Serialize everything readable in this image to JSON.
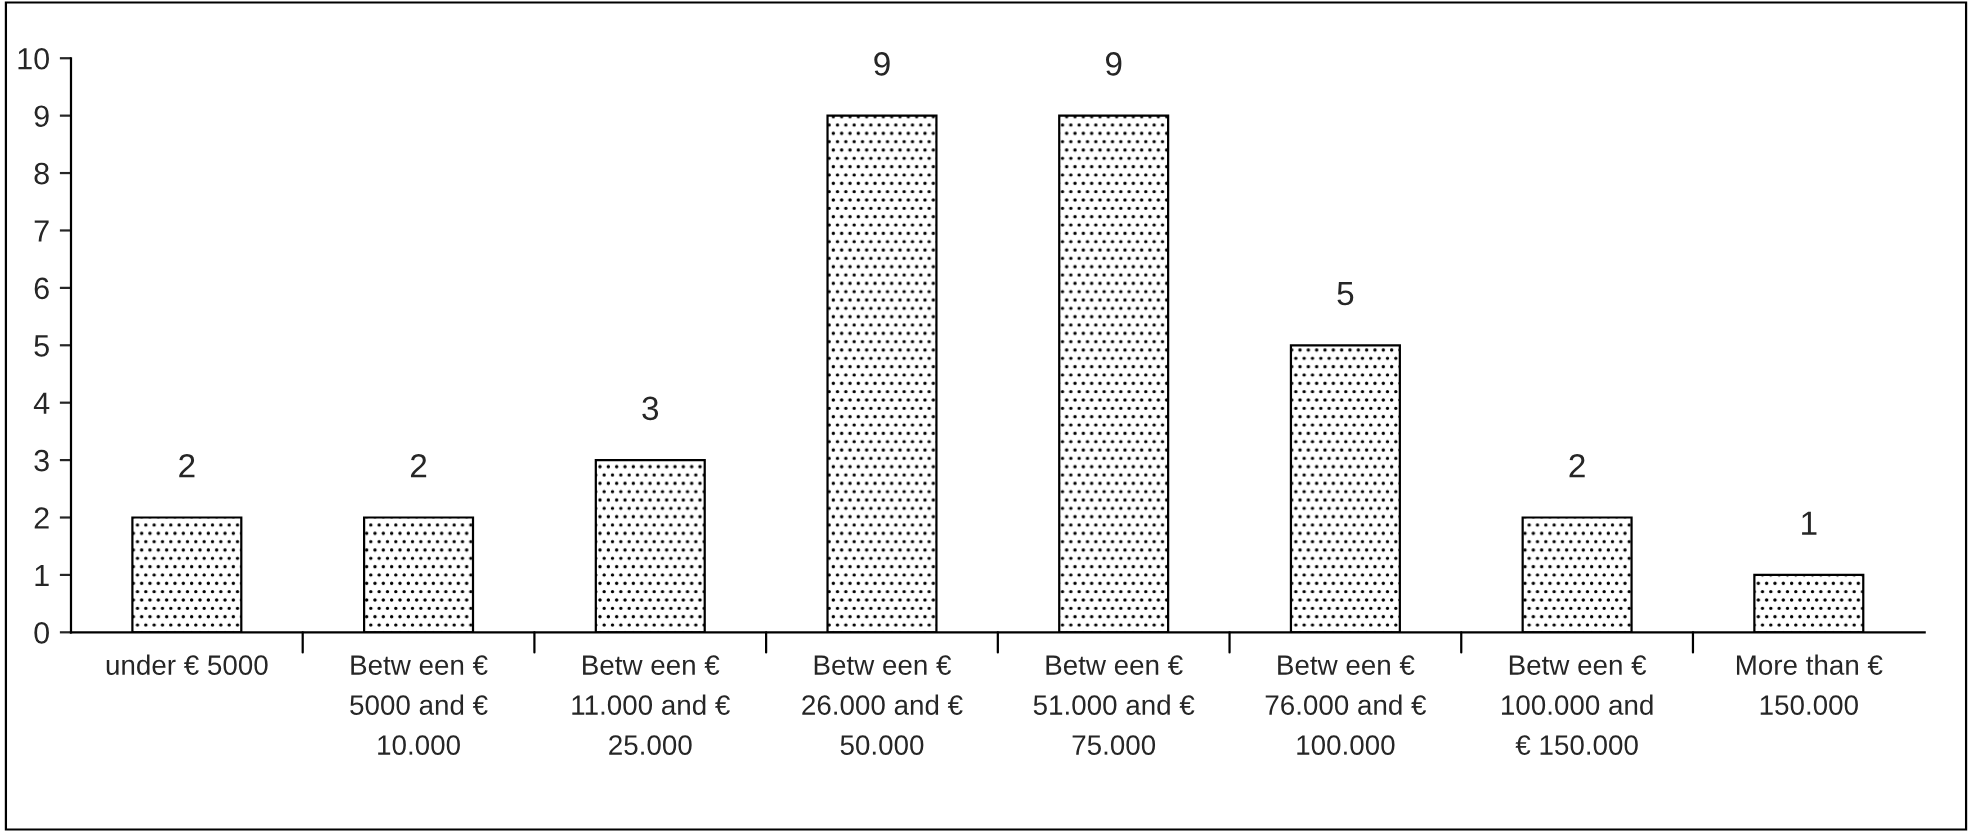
{
  "chart_data": {
    "type": "bar",
    "categories": [
      "under € 5000",
      "Betw een €\n5000 and €\n10.000",
      "Betw een €\n11.000 and €\n25.000",
      "Betw een €\n26.000 and €\n50.000",
      "Betw een €\n51.000 and €\n75.000",
      "Betw een €\n76.000 and €\n100.000",
      "Betw een €\n100.000 and\n€ 150.000",
      "More than €\n150.000"
    ],
    "values": [
      2,
      2,
      3,
      9,
      9,
      5,
      2,
      1
    ],
    "color": "#000000",
    "ylim": [
      0,
      10
    ],
    "yticks": [
      0,
      1,
      2,
      3,
      4,
      5,
      6,
      7,
      8,
      9,
      10
    ],
    "data_labels": true,
    "grid": false,
    "legend": false
  }
}
